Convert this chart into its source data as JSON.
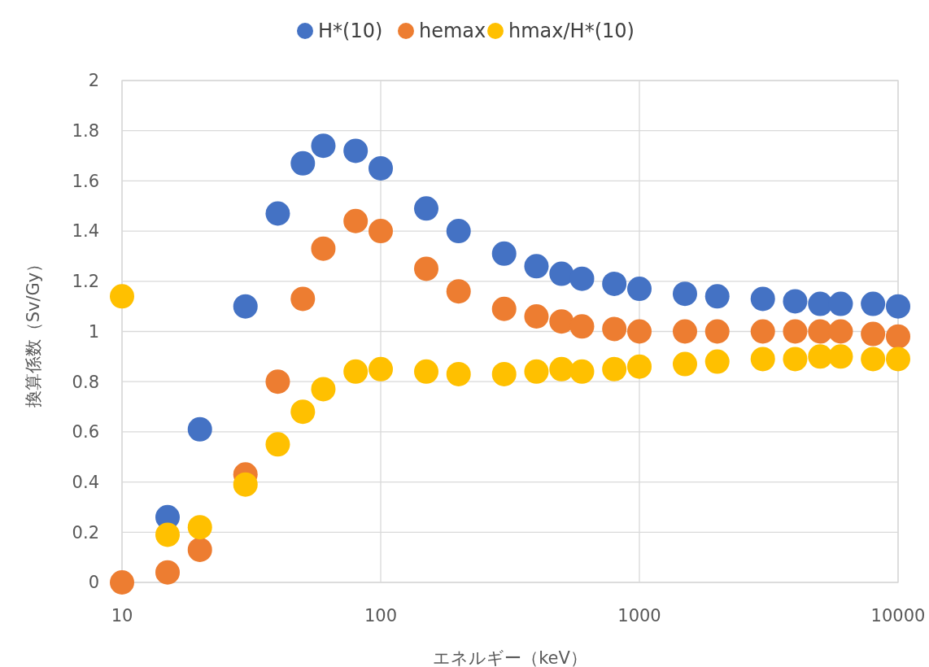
{
  "chart_data": {
    "type": "scatter",
    "xlabel": "エネルギー（keV）",
    "ylabel": "換算係数（Sv/Gy）",
    "x": [
      10,
      15,
      20,
      30,
      40,
      50,
      60,
      80,
      100,
      150,
      200,
      300,
      400,
      500,
      600,
      800,
      1000,
      1500,
      2000,
      3000,
      4000,
      5000,
      6000,
      8000,
      10000
    ],
    "series": [
      {
        "name": "H*(10)",
        "color": "#4472c4",
        "values": [
          null,
          0.26,
          0.61,
          1.1,
          1.47,
          1.67,
          1.74,
          1.72,
          1.65,
          1.49,
          1.4,
          1.31,
          1.26,
          1.23,
          1.21,
          1.19,
          1.17,
          1.15,
          1.14,
          1.13,
          1.12,
          1.11,
          1.11,
          1.11,
          1.1
        ]
      },
      {
        "name": "hemax",
        "color": "#ed7d31",
        "values": [
          0.0,
          0.04,
          0.13,
          0.43,
          0.8,
          1.13,
          1.33,
          1.44,
          1.4,
          1.25,
          1.16,
          1.09,
          1.06,
          1.04,
          1.02,
          1.01,
          1.0,
          1.0,
          1.0,
          1.0,
          1.0,
          1.0,
          1.0,
          0.99,
          0.98
        ]
      },
      {
        "name": "hmax/H*(10)",
        "color": "#ffc000",
        "values": [
          1.14,
          0.19,
          0.22,
          0.39,
          0.55,
          0.68,
          0.77,
          0.84,
          0.85,
          0.84,
          0.83,
          0.83,
          0.84,
          0.85,
          0.84,
          0.85,
          0.86,
          0.87,
          0.88,
          0.89,
          0.89,
          0.9,
          0.9,
          0.89,
          0.89
        ]
      }
    ],
    "xlim": [
      10,
      10000
    ],
    "xticks": [
      10,
      100,
      1000,
      10000
    ],
    "ylim": [
      0,
      2
    ],
    "yticks": [
      0,
      0.2,
      0.4,
      0.6,
      0.8,
      1,
      1.2,
      1.4,
      1.6,
      1.8,
      2
    ],
    "log": "x",
    "grid": true,
    "legend": "top",
    "marker": "circle"
  }
}
